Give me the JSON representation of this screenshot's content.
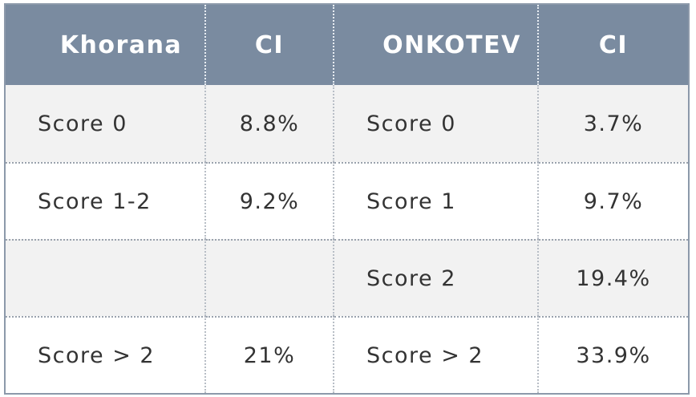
{
  "table": {
    "header": [
      "Khorana",
      "CI",
      "ONKOTEV",
      "CI"
    ],
    "rows": [
      [
        "Score 0",
        "8.8%",
        "Score 0",
        "3.7%"
      ],
      [
        "Score 1-2",
        "9.2%",
        "Score 1",
        "9.7%"
      ],
      [
        null,
        null,
        "Score 2",
        "19.4%"
      ],
      [
        "Score > 2",
        "21%",
        "Score > 2",
        "33.9%"
      ]
    ]
  }
}
